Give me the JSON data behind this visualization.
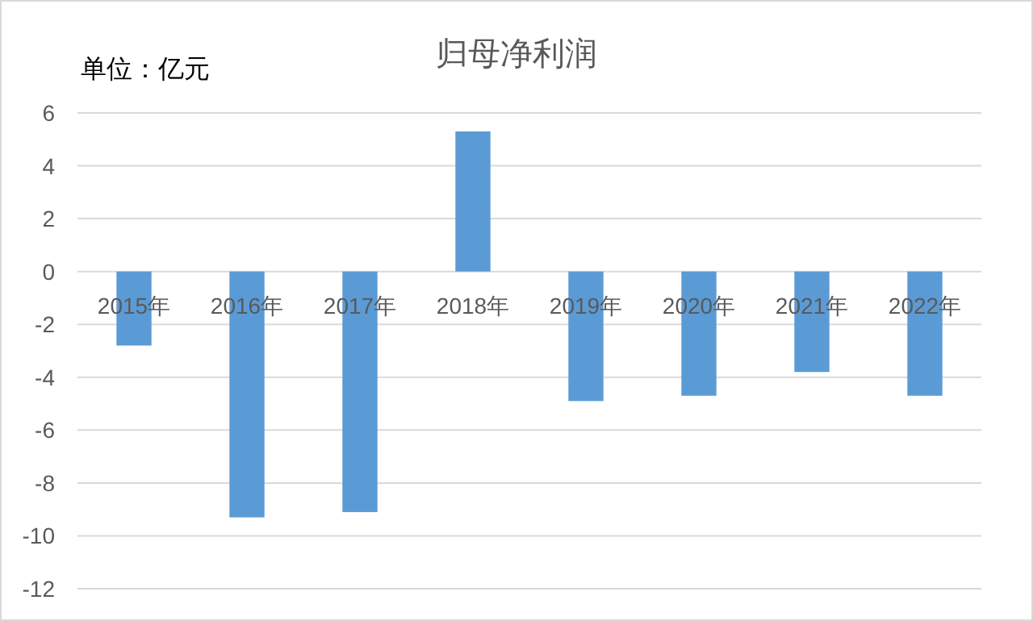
{
  "chart_data": {
    "type": "bar",
    "title": "归母净利润",
    "ylabel": "单位：亿元",
    "categories": [
      "2015年",
      "2016年",
      "2017年",
      "2018年",
      "2019年",
      "2020年",
      "2021年",
      "2022年"
    ],
    "values": [
      -2.8,
      -9.3,
      -9.1,
      5.3,
      -4.9,
      -4.7,
      -3.8,
      -4.7
    ],
    "color": "#5b9bd5",
    "ylim": [
      -12,
      6
    ],
    "yticks": [
      -12,
      -10,
      -8,
      -6,
      -4,
      -2,
      0,
      2,
      4,
      6
    ],
    "grid": "y"
  }
}
